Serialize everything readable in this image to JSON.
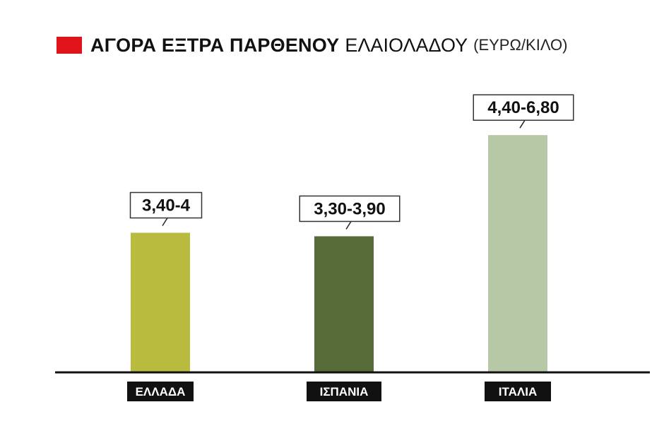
{
  "title": {
    "bold": "ΑΓΟΡΑ ΕΞΤΡΑ ΠΑΡΘΕΝΟΥ",
    "light": "ΕΛΑΙΟΛΑΔΟΥ",
    "unit": "(ΕΥΡΩ/ΚΙΛΟ)"
  },
  "colors": {
    "title_swatch": "#e0141b",
    "axis": "#111111",
    "category_box": "#111111",
    "label_box_border": "#333333"
  },
  "chart_data": {
    "type": "bar",
    "categories": [
      "ΕΛΛΑΔΑ",
      "ΙΣΠΑΝΙΑ",
      "ΙΤΑΛΙΑ"
    ],
    "values": [
      4.0,
      3.9,
      6.8
    ],
    "ranges": [
      [
        3.4,
        4.0
      ],
      [
        3.3,
        3.9
      ],
      [
        4.4,
        6.8
      ]
    ],
    "value_labels": [
      "3,40-4",
      "3,30-3,90",
      "4,40-6,80"
    ],
    "bar_colors": [
      "#b9bb3e",
      "#576b38",
      "#b6c8a5"
    ],
    "ylim": [
      0,
      8.1
    ],
    "grid": false,
    "legend": "none"
  }
}
